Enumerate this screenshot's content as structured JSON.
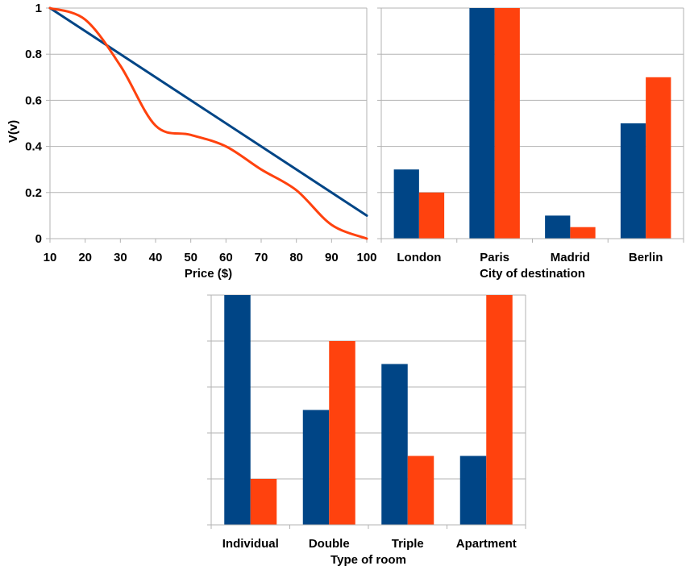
{
  "colors": {
    "series_a": "#004586",
    "series_b": "#ff420e",
    "grid": "#b3b3b3",
    "axis": "#b3b3b3"
  },
  "chart_data": [
    {
      "type": "line",
      "xlabel": "Price ($)",
      "ylabel": "V(v)",
      "xlim": [
        10,
        100
      ],
      "ylim": [
        0,
        1
      ],
      "x_ticks": [
        "10",
        "20",
        "30",
        "40",
        "50",
        "60",
        "70",
        "80",
        "90",
        "100"
      ],
      "y_ticks": [
        "0",
        "0.2",
        "0.4",
        "0.6",
        "0.8",
        "1"
      ],
      "grid": "horizontal",
      "series": [
        {
          "color": "#004586",
          "x": [
            10,
            100
          ],
          "y": [
            1.0,
            0.1
          ]
        },
        {
          "color": "#ff420e",
          "x": [
            10,
            20,
            30,
            40,
            50,
            60,
            70,
            80,
            90,
            100
          ],
          "y": [
            1.0,
            0.95,
            0.75,
            0.49,
            0.45,
            0.4,
            0.3,
            0.21,
            0.06,
            0.0
          ]
        }
      ]
    },
    {
      "type": "bar",
      "xlabel": "City of destination",
      "ylabel": "",
      "ylim": [
        0,
        1
      ],
      "grid": "horizontal",
      "categories": [
        "London",
        "Paris",
        "Madrid",
        "Berlin"
      ],
      "series": [
        {
          "color": "#004586",
          "values": [
            0.3,
            1.0,
            0.1,
            0.5
          ]
        },
        {
          "color": "#ff420e",
          "values": [
            0.2,
            1.0,
            0.05,
            0.7
          ]
        }
      ]
    },
    {
      "type": "bar",
      "xlabel": "Type of room",
      "ylabel": "",
      "ylim": [
        0,
        1
      ],
      "grid": "horizontal",
      "categories": [
        "Individual",
        "Double",
        "Triple",
        "Apartment"
      ],
      "series": [
        {
          "color": "#004586",
          "values": [
            1.0,
            0.5,
            0.7,
            0.3
          ]
        },
        {
          "color": "#ff420e",
          "values": [
            0.2,
            0.8,
            0.3,
            1.0
          ]
        }
      ]
    }
  ]
}
